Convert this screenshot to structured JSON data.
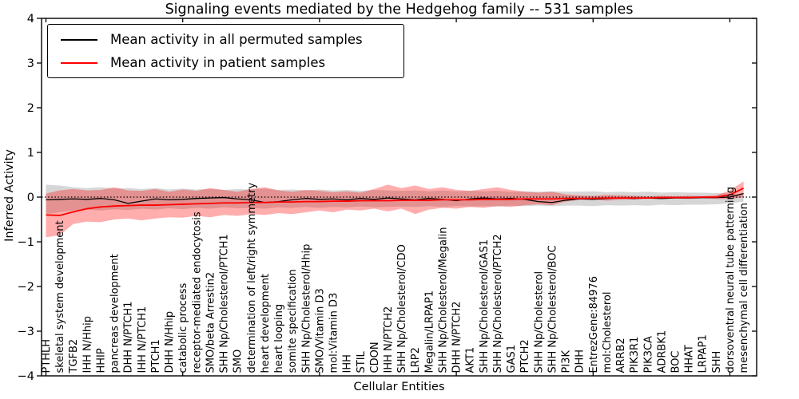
{
  "title": "Signaling events mediated by the Hedgehog family -- 531 samples",
  "axes": {
    "xlabel": "Cellular Entities",
    "ylabel": "Inferred Activity"
  },
  "legend": {
    "items": [
      {
        "label": "Mean activity in all permuted samples",
        "color": "#000000"
      },
      {
        "label": "Mean activity in patient samples",
        "color": "#ff0000"
      }
    ]
  },
  "chart_data": {
    "type": "line",
    "title": "Signaling events mediated by the Hedgehog family -- 531 samples",
    "xlabel": "Cellular Entities",
    "ylabel": "Inferred Activity",
    "ylim": [
      -4,
      4
    ],
    "yticks": [
      4,
      3,
      2,
      1,
      0,
      -1,
      -2,
      -3,
      -4
    ],
    "grid": false,
    "legend_position": "upper left",
    "zero_line": "dotted",
    "categories": [
      "PTHLH",
      "skeletal system development",
      "TGFB2",
      "IHH N/Hhip",
      "HHIP",
      "pancreas development",
      "DHH N/PTCH1",
      "IHH N/PTCH1",
      "PTCH1",
      "DHH N/Hhip",
      "catabolic process",
      "receptor-mediated endocytosis",
      "SMO/beta Arrestin2",
      "SHH Np/Cholesterol/PTCH1",
      "SMO",
      "determination of left/right symmetry",
      "heart development",
      "heart looping",
      "somite specification",
      "SHH Np/Cholesterol/Hhip",
      "SMO/Vitamin D3",
      "mol:Vitamin D3",
      "IHH",
      "STIL",
      "CDON",
      "IHH N/PTCH2",
      "SHH Np/Cholesterol/CDO",
      "LRP2",
      "Megalin/LRPAP1",
      "SHH Np/Cholesterol/Megalin",
      "DHH N/PTCH2",
      "AKT1",
      "SHH Np/Cholesterol/GAS1",
      "SHH Np/Cholesterol/PTCH2",
      "GAS1",
      "PTCH2",
      "SHH Np/Cholesterol",
      "SHH Np/Cholesterol/BOC",
      "PI3K",
      "DHH",
      "EntrezGene:84976",
      "mol:Cholesterol",
      "ARRB2",
      "PIK3R1",
      "PIK3CA",
      "ADRBK1",
      "BOC",
      "HHAT",
      "LRPAP1",
      "SHH",
      "dorsoventral neural tube patterning",
      "mesenchymal cell differentiation"
    ],
    "series": [
      {
        "name": "Mean activity in all permuted samples",
        "color": "#000000",
        "line_width": 1.3,
        "values": [
          -0.06,
          -0.05,
          -0.04,
          -0.05,
          -0.03,
          -0.06,
          -0.14,
          -0.09,
          -0.04,
          -0.06,
          -0.05,
          -0.03,
          -0.02,
          -0.01,
          -0.04,
          -0.06,
          -0.12,
          -0.1,
          -0.06,
          -0.03,
          -0.05,
          -0.04,
          -0.06,
          -0.03,
          -0.05,
          -0.02,
          -0.04,
          -0.06,
          -0.03,
          -0.05,
          -0.08,
          -0.04,
          -0.02,
          -0.04,
          -0.03,
          -0.05,
          -0.1,
          -0.12,
          -0.07,
          -0.04,
          -0.05,
          -0.03,
          -0.02,
          -0.03,
          -0.02,
          -0.03,
          -0.02,
          -0.02,
          -0.01,
          -0.01,
          0.0,
          0.08
        ],
        "band": {
          "upper": [
            0.28,
            0.26,
            0.22,
            0.2,
            0.22,
            0.19,
            0.2,
            0.18,
            0.2,
            0.17,
            0.19,
            0.17,
            0.18,
            0.16,
            0.18,
            0.17,
            0.19,
            0.16,
            0.17,
            0.15,
            0.17,
            0.15,
            0.16,
            0.14,
            0.16,
            0.15,
            0.14,
            0.15,
            0.13,
            0.15,
            0.13,
            0.14,
            0.13,
            0.14,
            0.12,
            0.13,
            0.12,
            0.13,
            0.12,
            0.12,
            0.13,
            0.11,
            0.12,
            0.11,
            0.12,
            0.1,
            0.11,
            0.1,
            0.1,
            0.09,
            0.08,
            0.06
          ],
          "lower": [
            -0.38,
            -0.34,
            -0.3,
            -0.28,
            -0.3,
            -0.27,
            -0.29,
            -0.26,
            -0.28,
            -0.25,
            -0.27,
            -0.24,
            -0.26,
            -0.23,
            -0.25,
            -0.24,
            -0.26,
            -0.23,
            -0.24,
            -0.22,
            -0.24,
            -0.22,
            -0.23,
            -0.21,
            -0.23,
            -0.22,
            -0.21,
            -0.22,
            -0.2,
            -0.22,
            -0.2,
            -0.21,
            -0.2,
            -0.21,
            -0.19,
            -0.2,
            -0.19,
            -0.2,
            -0.19,
            -0.19,
            -0.2,
            -0.18,
            -0.19,
            -0.18,
            -0.19,
            -0.17,
            -0.18,
            -0.17,
            -0.17,
            -0.16,
            -0.14,
            -0.1
          ],
          "color": "#7f7f7f",
          "opacity": 0.32
        }
      },
      {
        "name": "Mean activity in patient samples",
        "color": "#ff0000",
        "line_width": 1.8,
        "values": [
          -0.4,
          -0.41,
          -0.33,
          -0.26,
          -0.22,
          -0.2,
          -0.19,
          -0.18,
          -0.18,
          -0.17,
          -0.16,
          -0.15,
          -0.14,
          -0.13,
          -0.13,
          -0.12,
          -0.12,
          -0.11,
          -0.11,
          -0.1,
          -0.1,
          -0.09,
          -0.09,
          -0.08,
          -0.08,
          -0.08,
          -0.07,
          -0.07,
          -0.07,
          -0.06,
          -0.06,
          -0.06,
          -0.05,
          -0.05,
          -0.05,
          -0.04,
          -0.04,
          -0.04,
          -0.03,
          -0.03,
          -0.03,
          -0.02,
          -0.02,
          -0.02,
          -0.02,
          -0.01,
          -0.01,
          -0.01,
          0.0,
          0.0,
          0.05,
          0.2
        ],
        "band": {
          "upper": [
            0.08,
            0.15,
            0.18,
            0.15,
            0.16,
            0.22,
            0.15,
            0.14,
            0.18,
            0.12,
            0.17,
            0.14,
            0.2,
            0.16,
            0.12,
            0.18,
            0.22,
            0.15,
            0.12,
            0.16,
            0.14,
            0.11,
            0.13,
            0.1,
            0.18,
            0.28,
            0.2,
            0.26,
            0.18,
            0.22,
            0.16,
            0.14,
            0.18,
            0.22,
            0.16,
            0.12,
            0.1,
            0.12,
            0.06,
            0.04,
            0.03,
            0.05,
            0.04,
            0.03,
            0.02,
            0.03,
            0.02,
            0.03,
            0.02,
            0.04,
            0.15,
            0.35
          ],
          "lower": [
            -0.9,
            -0.85,
            -0.6,
            -0.55,
            -0.56,
            -0.5,
            -0.48,
            -0.52,
            -0.48,
            -0.45,
            -0.46,
            -0.42,
            -0.45,
            -0.4,
            -0.42,
            -0.38,
            -0.4,
            -0.36,
            -0.38,
            -0.34,
            -0.3,
            -0.34,
            -0.28,
            -0.3,
            -0.26,
            -0.32,
            -0.26,
            -0.38,
            -0.28,
            -0.24,
            -0.26,
            -0.22,
            -0.24,
            -0.2,
            -0.22,
            -0.18,
            -0.16,
            -0.18,
            -0.1,
            -0.06,
            -0.05,
            -0.08,
            -0.06,
            -0.05,
            -0.04,
            -0.04,
            -0.03,
            -0.04,
            -0.03,
            -0.04,
            -0.05,
            0.0
          ],
          "color": "#ff0000",
          "opacity": 0.32
        }
      }
    ]
  }
}
